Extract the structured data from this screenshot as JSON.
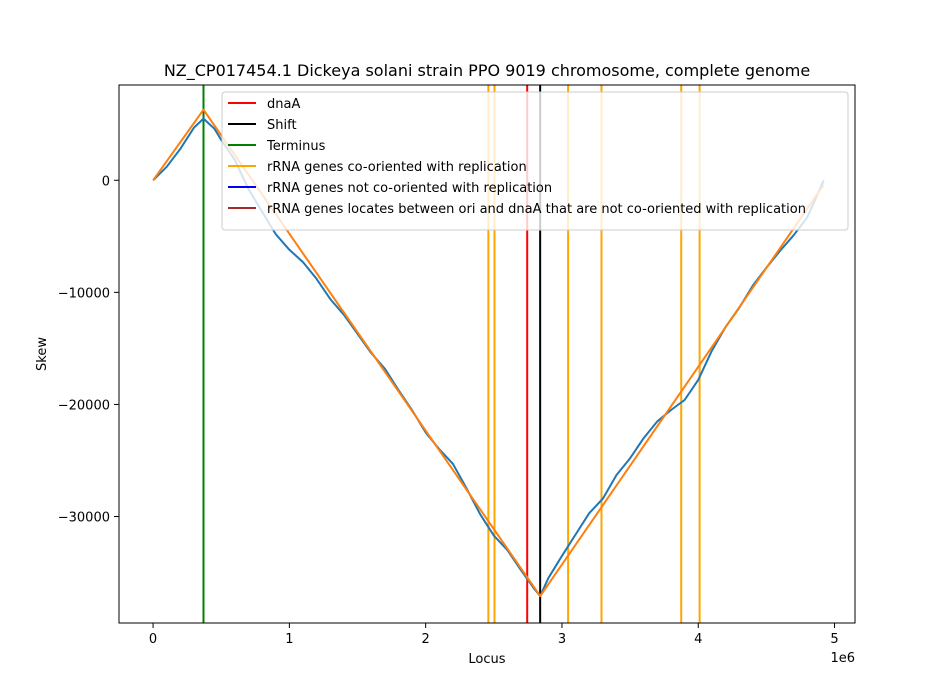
{
  "chart_data": {
    "type": "line",
    "title": "NZ_CP017454.1 Dickeya solani strain PPO 9019 chromosome, complete genome",
    "xlabel": "Locus",
    "ylabel": "Skew",
    "x_offset_label": "1e6",
    "xlim": [
      -250000,
      5150000
    ],
    "ylim": [
      -39500,
      8500
    ],
    "xticks": [
      {
        "value": 0,
        "label": "0"
      },
      {
        "value": 1000000,
        "label": "1"
      },
      {
        "value": 2000000,
        "label": "2"
      },
      {
        "value": 3000000,
        "label": "3"
      },
      {
        "value": 4000000,
        "label": "4"
      },
      {
        "value": 5000000,
        "label": "5"
      }
    ],
    "yticks": [
      {
        "value": 0,
        "label": "0"
      },
      {
        "value": -10000,
        "label": "−10000"
      },
      {
        "value": -20000,
        "label": "−20000"
      },
      {
        "value": -30000,
        "label": "−30000"
      }
    ],
    "grid": false,
    "legend_position": "top-right",
    "skew_series": {
      "color": "#1f77b4",
      "x": [
        0,
        100000,
        200000,
        300000,
        370000,
        450000,
        500000,
        600000,
        700000,
        800000,
        900000,
        1000000,
        1100000,
        1200000,
        1300000,
        1400000,
        1500000,
        1600000,
        1700000,
        1800000,
        1900000,
        2000000,
        2100000,
        2200000,
        2300000,
        2400000,
        2500000,
        2600000,
        2700000,
        2800000,
        2840000,
        2900000,
        3000000,
        3100000,
        3200000,
        3300000,
        3400000,
        3500000,
        3600000,
        3700000,
        3800000,
        3900000,
        4000000,
        4100000,
        4200000,
        4300000,
        4400000,
        4500000,
        4600000,
        4700000,
        4800000,
        4920000
      ],
      "y": [
        0,
        1200,
        2800,
        4700,
        5500,
        4600,
        3600,
        1800,
        -800,
        -2800,
        -4800,
        -6200,
        -7300,
        -8800,
        -10600,
        -12000,
        -13700,
        -15400,
        -16800,
        -18700,
        -20500,
        -22500,
        -24000,
        -25300,
        -27500,
        -29800,
        -31700,
        -33000,
        -34800,
        -36500,
        -37100,
        -35500,
        -33500,
        -31600,
        -29700,
        -28400,
        -26300,
        -24800,
        -23000,
        -21500,
        -20500,
        -19600,
        -17800,
        -15200,
        -13100,
        -11400,
        -9400,
        -7800,
        -6300,
        -4900,
        -3300,
        0
      ]
    },
    "fit_series": {
      "color": "#ff7f0e",
      "x": [
        0,
        370000,
        2840000,
        4920000
      ],
      "y": [
        0,
        6300,
        -37100,
        -400
      ]
    },
    "vertical_lines": [
      {
        "name": "dnaA",
        "x": 2745000,
        "color": "#ff0000"
      },
      {
        "name": "Shift",
        "x": 2840000,
        "color": "#000000"
      },
      {
        "name": "Terminus",
        "x": 370000,
        "color": "#008000"
      },
      {
        "name": "rRNA genes co-oriented with replication",
        "x": 2460000,
        "color": "#ffa500"
      },
      {
        "name": "rRNA genes co-oriented with replication",
        "x": 2505000,
        "color": "#ffa500"
      },
      {
        "name": "rRNA genes co-oriented with replication",
        "x": 3045000,
        "color": "#ffa500"
      },
      {
        "name": "rRNA genes co-oriented with replication",
        "x": 3290000,
        "color": "#ffa500"
      },
      {
        "name": "rRNA genes co-oriented with replication",
        "x": 3875000,
        "color": "#ffa500"
      },
      {
        "name": "rRNA genes co-oriented with replication",
        "x": 4010000,
        "color": "#ffa500"
      }
    ],
    "legend": [
      {
        "label": "dnaA",
        "color": "#ff0000"
      },
      {
        "label": "Shift",
        "color": "#000000"
      },
      {
        "label": "Terminus",
        "color": "#008000"
      },
      {
        "label": "rRNA genes co-oriented with replication",
        "color": "#ffa500"
      },
      {
        "label": "rRNA genes not co-oriented with replication",
        "color": "#0000ff"
      },
      {
        "label": "rRNA genes locates between ori and dnaA that are not co-oriented with replication",
        "color": "#a52a2a"
      }
    ]
  }
}
